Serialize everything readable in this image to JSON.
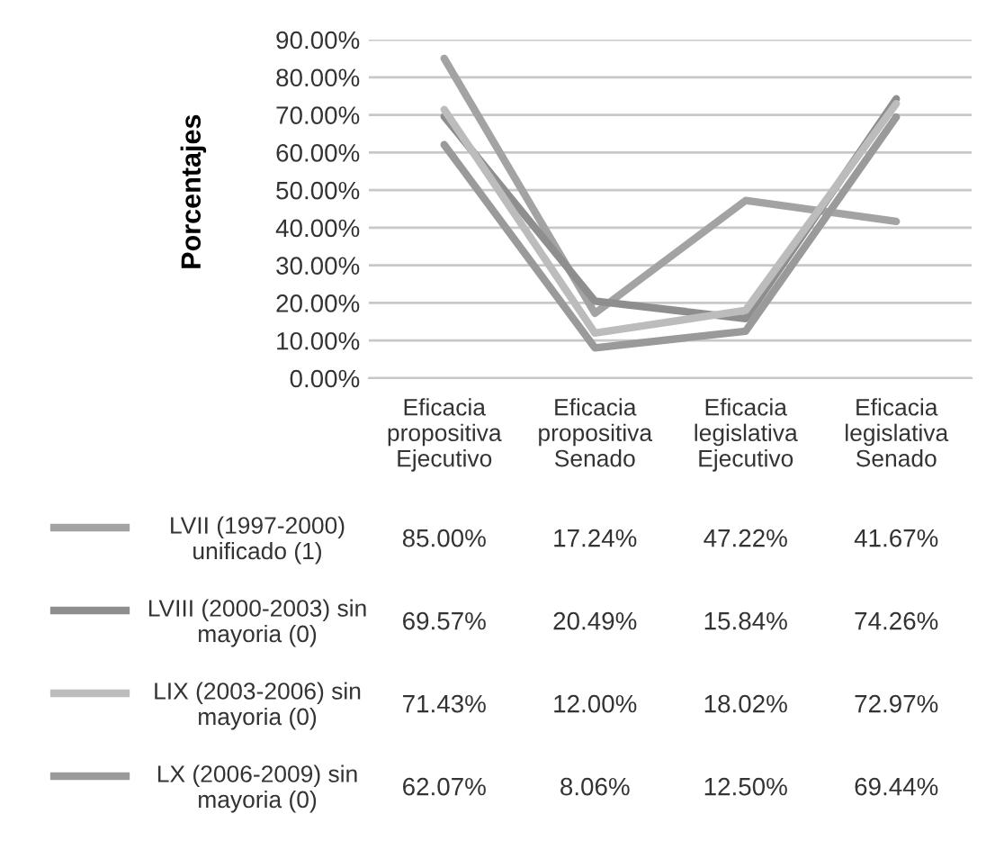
{
  "chart_data": {
    "type": "line",
    "ylabel": "Porcentajes",
    "categories": [
      "Eficacia propositiva Ejecutivo",
      "Eficacia propositiva Senado",
      "Eficacia legislativa Ejecutivo",
      "Eficacia legislativa Senado"
    ],
    "ylim": [
      0,
      90
    ],
    "yticks": [
      {
        "value": 0,
        "label": "0.00%"
      },
      {
        "value": 10,
        "label": "10.00%"
      },
      {
        "value": 20,
        "label": "20.00%"
      },
      {
        "value": 30,
        "label": "30.00%"
      },
      {
        "value": 40,
        "label": "40.00%"
      },
      {
        "value": 50,
        "label": "50.00%"
      },
      {
        "value": 60,
        "label": "60.00%"
      },
      {
        "value": 70,
        "label": "70.00%"
      },
      {
        "value": 80,
        "label": "80.00%"
      },
      {
        "value": 90,
        "label": "90.00%"
      }
    ],
    "grid": "y",
    "legend": "bottom",
    "marker": "none",
    "line_style": "solid",
    "series": [
      {
        "name": "LVII (1997-2000) unificado (1)",
        "color": "#a3a3a3",
        "values": [
          85.0,
          17.24,
          47.22,
          41.67
        ],
        "value_labels": [
          "85.00%",
          "17.24%",
          "47.22%",
          "41.67%"
        ]
      },
      {
        "name": "LVIII (2000-2003) sin mayoria (0)",
        "color": "#8e8e8e",
        "values": [
          69.57,
          20.49,
          15.84,
          74.26
        ],
        "value_labels": [
          "69.57%",
          "20.49%",
          "15.84%",
          "74.26%"
        ]
      },
      {
        "name": "LIX (2003-2006) sin mayoria (0)",
        "color": "#bcbcbc",
        "values": [
          71.43,
          12.0,
          18.02,
          72.97
        ],
        "value_labels": [
          "71.43%",
          "12.00%",
          "18.02%",
          "72.97%"
        ]
      },
      {
        "name": "LX (2006-2009) sin mayoria (0)",
        "color": "#9a9a9a",
        "values": [
          62.07,
          8.06,
          12.5,
          69.44
        ],
        "value_labels": [
          "62.07%",
          "8.06%",
          "12.50%",
          "69.44%"
        ]
      }
    ]
  }
}
